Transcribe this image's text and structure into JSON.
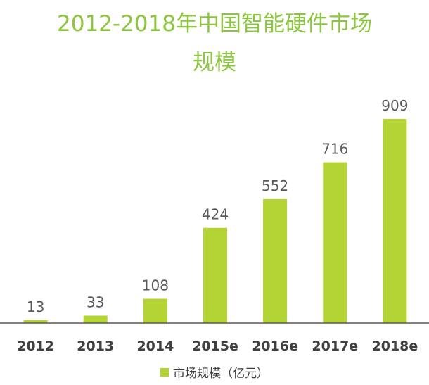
{
  "header": {
    "title_line1": "2012-2018年中国智能硬件市场",
    "title_line2": "规模"
  },
  "colors": {
    "bar": "#b4d334",
    "title": "#8cc63f",
    "axis": "#595959",
    "value_text": "#595959",
    "category_text": "#404040"
  },
  "chart_data": {
    "type": "bar",
    "title": "2012-2018年中国智能硬件市场规模",
    "categories": [
      "2012",
      "2013",
      "2014",
      "2015e",
      "2016e",
      "2017e",
      "2018e"
    ],
    "series": [
      {
        "name": "市场规模（亿元）",
        "values": [
          13,
          33,
          108,
          424,
          552,
          716,
          909
        ]
      }
    ],
    "data_labels": [
      "13",
      "33",
      "108",
      "424",
      "552",
      "716",
      "909"
    ],
    "ylim": [
      0,
      909
    ],
    "legend_position": "bottom",
    "grid": false,
    "xlabel": "",
    "ylabel": ""
  },
  "legend": {
    "label": "市场规模（亿元）"
  }
}
